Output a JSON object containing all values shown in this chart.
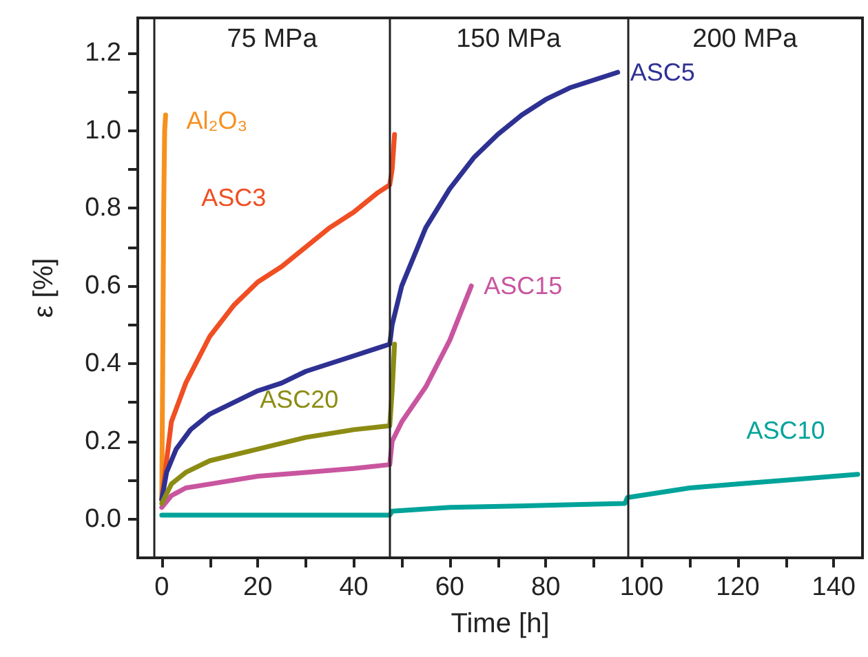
{
  "chart_data": {
    "type": "line",
    "xlabel": "Time [h]",
    "ylabel": "ε [%]",
    "xlim": [
      -5,
      146
    ],
    "ylim": [
      -0.1,
      1.29
    ],
    "xticks": [
      0,
      {
        "value": 10,
        "label": null
      },
      20,
      {
        "value": 30,
        "label": null
      },
      40,
      {
        "value": 50,
        "label": null
      },
      60,
      {
        "value": 70,
        "label": null
      },
      80,
      {
        "value": 90,
        "label": null
      },
      100,
      {
        "value": 110,
        "label": null
      },
      120,
      {
        "value": 130,
        "label": null
      },
      140
    ],
    "yticks": [
      {
        "value": 0,
        "label": "0.0"
      },
      {
        "value": 0.1,
        "label": null
      },
      0.2,
      {
        "value": 0.3,
        "label": null
      },
      0.4,
      {
        "value": 0.5,
        "label": null
      },
      0.6,
      {
        "value": 0.7,
        "label": null
      },
      0.8,
      {
        "value": 0.9,
        "label": null
      },
      {
        "value": 1,
        "label": "1.0"
      },
      {
        "value": 1.1,
        "label": null
      },
      1.2
    ],
    "grid": false,
    "legend": false,
    "marker": "none",
    "line_style": "solid",
    "ref_lines": [
      {
        "axis": "x",
        "value": -1.5,
        "color": "#222222"
      },
      {
        "axis": "x",
        "value": 47.5,
        "color": "#222222"
      },
      {
        "axis": "x",
        "value": 97,
        "color": "#222222"
      }
    ],
    "annotations": [
      "75 MPa",
      "150 MPa",
      "200 MPa"
    ],
    "series": [
      {
        "name": "Al₂O₃",
        "color": "#f7901e",
        "x": [
          0,
          0.2,
          0.4,
          0.6,
          0.8
        ],
        "values": [
          0.05,
          0.4,
          0.8,
          1.0,
          1.04
        ]
      },
      {
        "name": "ASC3",
        "color": "#f04e23",
        "x": [
          0,
          2,
          5,
          10,
          15,
          20,
          25,
          30,
          35,
          40,
          45,
          47.5,
          48,
          48.5
        ],
        "values": [
          0.05,
          0.25,
          0.35,
          0.47,
          0.55,
          0.61,
          0.65,
          0.7,
          0.75,
          0.79,
          0.84,
          0.86,
          0.9,
          0.99
        ]
      },
      {
        "name": "ASC5",
        "color": "#2e3192",
        "x": [
          0,
          1,
          3,
          6,
          10,
          15,
          20,
          25,
          30,
          35,
          40,
          45,
          47.5,
          48,
          50,
          55,
          60,
          65,
          70,
          75,
          80,
          85,
          90,
          95
        ],
        "values": [
          0.05,
          0.12,
          0.18,
          0.23,
          0.27,
          0.3,
          0.33,
          0.35,
          0.38,
          0.4,
          0.42,
          0.44,
          0.45,
          0.5,
          0.6,
          0.75,
          0.85,
          0.93,
          0.99,
          1.04,
          1.08,
          1.11,
          1.13,
          1.15
        ]
      },
      {
        "name": "ASC15",
        "color": "#c9559f",
        "x": [
          0,
          2,
          5,
          10,
          20,
          30,
          40,
          47.5,
          48,
          50,
          55,
          60,
          64.5
        ],
        "values": [
          0.03,
          0.06,
          0.08,
          0.09,
          0.11,
          0.12,
          0.13,
          0.14,
          0.2,
          0.25,
          0.34,
          0.46,
          0.6
        ]
      },
      {
        "name": "ASC20",
        "color": "#8c8c14",
        "x": [
          0,
          2,
          5,
          10,
          20,
          30,
          40,
          47.5,
          48,
          48.5
        ],
        "values": [
          0.04,
          0.09,
          0.12,
          0.15,
          0.18,
          0.21,
          0.23,
          0.24,
          0.33,
          0.45
        ]
      },
      {
        "name": "ASC10",
        "color": "#00a39a",
        "x": [
          0,
          10,
          20,
          30,
          47.5,
          48,
          60,
          80,
          96.5,
          97,
          110,
          120,
          130,
          145
        ],
        "values": [
          0.01,
          0.01,
          0.01,
          0.01,
          0.01,
          0.02,
          0.03,
          0.035,
          0.04,
          0.055,
          0.08,
          0.09,
          0.1,
          0.115
        ]
      }
    ]
  }
}
